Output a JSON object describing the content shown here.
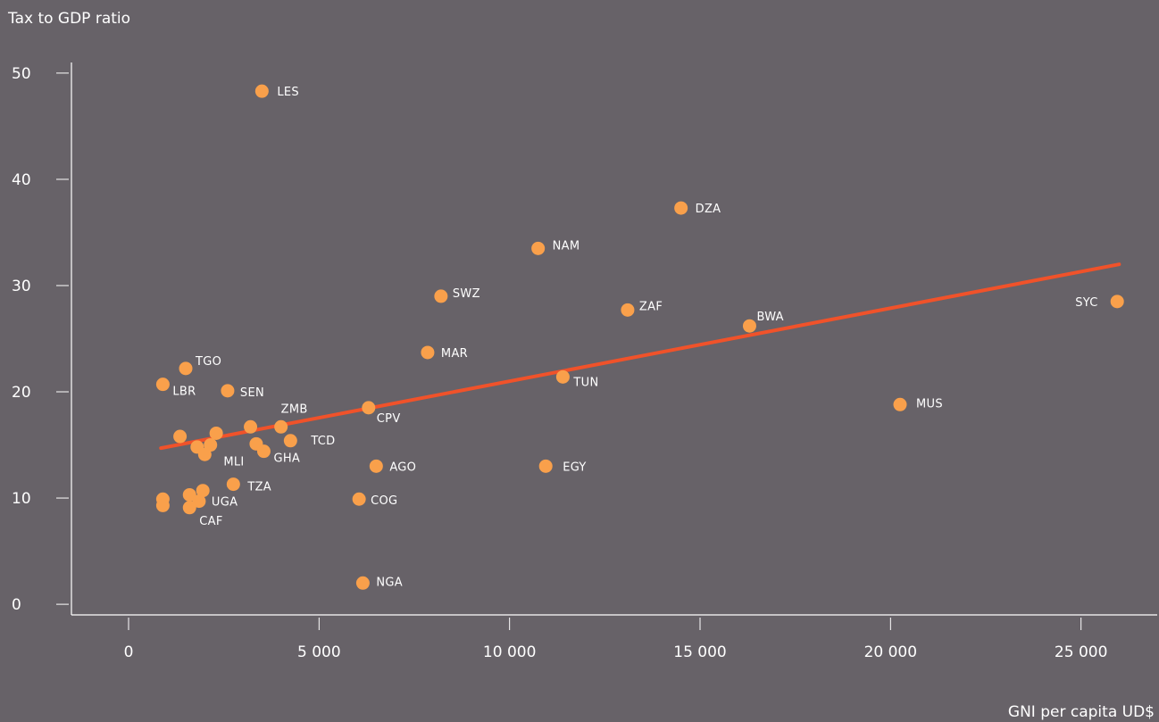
{
  "chart_data": {
    "type": "scatter",
    "title": "",
    "xlabel": "GNI per capita UD$",
    "ylabel": "Tax to GDP ratio",
    "xlim": [
      -1500,
      27000
    ],
    "ylim": [
      -1,
      51
    ],
    "x_ticks": [
      {
        "value": 0,
        "label": "0"
      },
      {
        "value": 5000,
        "label": "5 000"
      },
      {
        "value": 10000,
        "label": "10 000"
      },
      {
        "value": 15000,
        "label": "15 000"
      },
      {
        "value": 20000,
        "label": "20 000"
      },
      {
        "value": 25000,
        "label": "25 000"
      }
    ],
    "y_ticks": [
      {
        "value": 0,
        "label": "0"
      },
      {
        "value": 10,
        "label": "10"
      },
      {
        "value": 20,
        "label": "20"
      },
      {
        "value": 30,
        "label": "30"
      },
      {
        "value": 40,
        "label": "40"
      },
      {
        "value": 50,
        "label": "50"
      }
    ],
    "grid": false,
    "colors": {
      "background": "#676268",
      "points": "#F9A04B",
      "trend": "#F0522A",
      "axis": "#ffffff"
    },
    "points": [
      {
        "label": "LES",
        "x": 3500,
        "y": 48.3
      },
      {
        "label": "DZA",
        "x": 14500,
        "y": 37.3
      },
      {
        "label": "NAM",
        "x": 10750,
        "y": 33.5
      },
      {
        "label": "SWZ",
        "x": 8200,
        "y": 29.0
      },
      {
        "label": "ZAF",
        "x": 13100,
        "y": 27.7
      },
      {
        "label": "SYC",
        "x": 25950,
        "y": 28.5
      },
      {
        "label": "BWA",
        "x": 16300,
        "y": 26.2
      },
      {
        "label": "MAR",
        "x": 7850,
        "y": 23.7
      },
      {
        "label": "TGO",
        "x": 1500,
        "y": 22.2
      },
      {
        "label": "TUN",
        "x": 11400,
        "y": 21.4
      },
      {
        "label": "LBR",
        "x": 900,
        "y": 20.7
      },
      {
        "label": "SEN",
        "x": 2600,
        "y": 20.1
      },
      {
        "label": "MUS",
        "x": 20250,
        "y": 18.8
      },
      {
        "label": "CPV",
        "x": 6300,
        "y": 18.5
      },
      {
        "label": "ZMB",
        "x": 4000,
        "y": 16.7
      },
      {
        "label": "",
        "x": 3200,
        "y": 16.7
      },
      {
        "label": "",
        "x": 2300,
        "y": 16.1
      },
      {
        "label": "",
        "x": 1350,
        "y": 15.8
      },
      {
        "label": "TCD",
        "x": 4250,
        "y": 15.4
      },
      {
        "label": "",
        "x": 3350,
        "y": 15.1
      },
      {
        "label": "",
        "x": 2150,
        "y": 15.0
      },
      {
        "label": "",
        "x": 1800,
        "y": 14.8
      },
      {
        "label": "GHA",
        "x": 3550,
        "y": 14.4
      },
      {
        "label": "MLI",
        "x": 2000,
        "y": 14.1
      },
      {
        "label": "AGO",
        "x": 6500,
        "y": 13.0
      },
      {
        "label": "EGY",
        "x": 10950,
        "y": 13.0
      },
      {
        "label": "TZA",
        "x": 2750,
        "y": 11.3
      },
      {
        "label": "",
        "x": 1950,
        "y": 10.7
      },
      {
        "label": "",
        "x": 1600,
        "y": 10.3
      },
      {
        "label": "",
        "x": 900,
        "y": 9.9
      },
      {
        "label": "COG",
        "x": 6050,
        "y": 9.9
      },
      {
        "label": "UGA",
        "x": 1850,
        "y": 9.7
      },
      {
        "label": "",
        "x": 900,
        "y": 9.3
      },
      {
        "label": "CAF",
        "x": 1600,
        "y": 9.1
      },
      {
        "label": "NGA",
        "x": 6150,
        "y": 2.0
      }
    ],
    "trendline": {
      "x": [
        850,
        26000
      ],
      "y": [
        14.7,
        32.0
      ]
    }
  }
}
